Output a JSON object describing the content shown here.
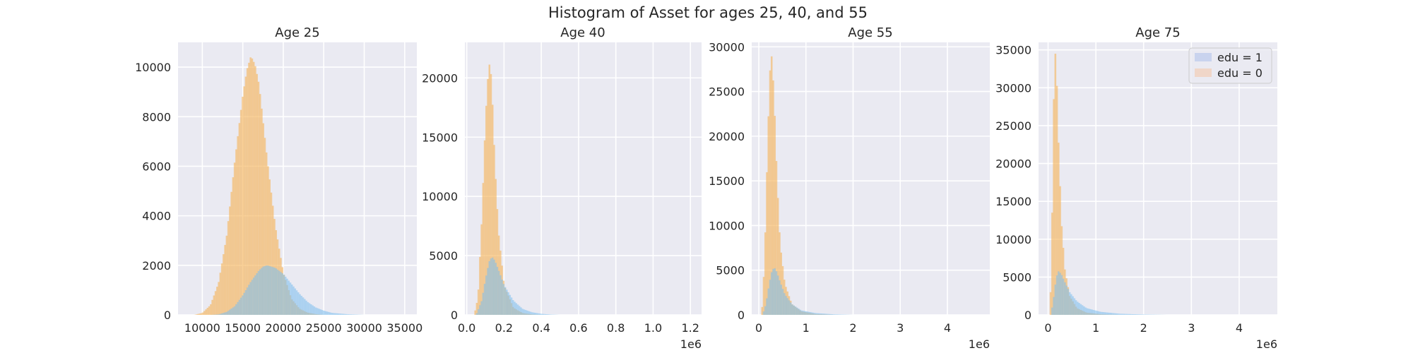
{
  "figure": {
    "title": "Histogram of Asset for ages 25, 40, and 55"
  },
  "colors": {
    "edu1": "#7fbfee",
    "edu0": "#f5b45a",
    "background": "#EAEAF2",
    "grid": "#ffffff"
  },
  "legend": {
    "location": "upper right of last panel",
    "entries": [
      {
        "label": "edu = 1",
        "swatch": "#c9d3ee"
      },
      {
        "label": "edu = 0",
        "swatch": "#f0d6c8"
      }
    ]
  },
  "chart_data": [
    {
      "type": "histogram",
      "title": "Age 25",
      "xlim": [
        7000,
        36500
      ],
      "ylim": [
        0,
        11000
      ],
      "xticks": [
        10000,
        15000,
        20000,
        25000,
        30000,
        35000
      ],
      "xtick_labels": [
        "10000",
        "15000",
        "20000",
        "25000",
        "30000",
        "35000"
      ],
      "yticks": [
        0,
        2000,
        4000,
        6000,
        8000,
        10000
      ],
      "ytick_labels": [
        "0",
        "2000",
        "4000",
        "6000",
        "8000",
        "10000"
      ],
      "offset_label": "",
      "series": [
        {
          "name": "edu = 0",
          "x": [
            9000,
            10000,
            11000,
            12000,
            13000,
            14000,
            15000,
            15500,
            16000,
            16500,
            17000,
            18000,
            19000,
            20000,
            21000,
            22000,
            23000,
            24000,
            25000
          ],
          "y": [
            0,
            80,
            400,
            1300,
            3200,
            6200,
            8900,
            9900,
            10450,
            10100,
            9300,
            6300,
            3600,
            1700,
            650,
            250,
            90,
            30,
            0
          ]
        },
        {
          "name": "edu = 1",
          "x": [
            11000,
            12000,
            13000,
            14000,
            15000,
            16000,
            17000,
            17500,
            18000,
            19000,
            20000,
            21000,
            22000,
            23000,
            24000,
            25000,
            26000,
            28000,
            30000
          ],
          "y": [
            0,
            20,
            120,
            350,
            800,
            1350,
            1800,
            1950,
            2000,
            1900,
            1650,
            1250,
            850,
            520,
            300,
            170,
            80,
            25,
            0
          ]
        }
      ]
    },
    {
      "type": "histogram",
      "title": "Age 40",
      "xlim": [
        -10000,
        1260000
      ],
      "ylim": [
        0,
        23000
      ],
      "xticks": [
        0,
        200000,
        400000,
        600000,
        800000,
        1000000,
        1200000
      ],
      "xtick_labels": [
        "0.0",
        "0.2",
        "0.4",
        "0.6",
        "0.8",
        "1.0",
        "1.2"
      ],
      "yticks": [
        0,
        5000,
        10000,
        15000,
        20000
      ],
      "ytick_labels": [
        "0",
        "5000",
        "10000",
        "15000",
        "20000"
      ],
      "offset_label": "1e6",
      "series": [
        {
          "name": "edu = 0",
          "x": [
            40000,
            60000,
            80000,
            100000,
            115000,
            125000,
            135000,
            150000,
            170000,
            200000,
            250000,
            300000,
            350000,
            400000
          ],
          "y": [
            0,
            1500,
            8000,
            16500,
            20500,
            21500,
            19000,
            13000,
            7000,
            2500,
            600,
            150,
            40,
            0
          ]
        },
        {
          "name": "edu = 1",
          "x": [
            50000,
            80000,
            100000,
            120000,
            135000,
            150000,
            170000,
            200000,
            250000,
            300000,
            350000,
            400000,
            450000,
            500000
          ],
          "y": [
            0,
            1200,
            3000,
            4500,
            4900,
            4600,
            3800,
            2500,
            1200,
            500,
            220,
            90,
            30,
            0
          ]
        }
      ]
    },
    {
      "type": "histogram",
      "title": "Age 55",
      "xlim": [
        -150000,
        4900000
      ],
      "ylim": [
        0,
        30500
      ],
      "xticks": [
        0,
        1000000,
        2000000,
        3000000,
        4000000
      ],
      "xtick_labels": [
        "0",
        "1",
        "2",
        "3",
        "4"
      ],
      "yticks": [
        0,
        5000,
        10000,
        15000,
        20000,
        25000,
        30000
      ],
      "ytick_labels": [
        "0",
        "5000",
        "10000",
        "15000",
        "20000",
        "25000",
        "30000"
      ],
      "offset_label": "1e6",
      "series": [
        {
          "name": "edu = 0",
          "x": [
            60000,
            120000,
            180000,
            230000,
            270000,
            320000,
            380000,
            450000,
            550000,
            700000,
            900000,
            1200000,
            1600000
          ],
          "y": [
            0,
            6000,
            18000,
            27000,
            29000,
            25000,
            16000,
            8000,
            3500,
            1200,
            400,
            100,
            0
          ]
        },
        {
          "name": "edu = 1",
          "x": [
            80000,
            150000,
            220000,
            280000,
            330000,
            380000,
            450000,
            550000,
            700000,
            900000,
            1200000,
            1600000,
            2000000
          ],
          "y": [
            0,
            1200,
            3500,
            5000,
            5300,
            4800,
            3700,
            2300,
            1200,
            500,
            200,
            60,
            0
          ]
        }
      ]
    },
    {
      "type": "histogram",
      "title": "Age 75",
      "xlim": [
        -200000,
        4800000
      ],
      "ylim": [
        0,
        36000
      ],
      "xticks": [
        0,
        1000000,
        2000000,
        3000000,
        4000000
      ],
      "xtick_labels": [
        "0",
        "1",
        "2",
        "3",
        "4"
      ],
      "yticks": [
        0,
        5000,
        10000,
        15000,
        20000,
        25000,
        30000,
        35000
      ],
      "ytick_labels": [
        "0",
        "5000",
        "10000",
        "15000",
        "20000",
        "25000",
        "30000",
        "35000"
      ],
      "offset_label": "1e6",
      "series": [
        {
          "name": "edu = 0",
          "x": [
            40000,
            80000,
            120000,
            150000,
            180000,
            220000,
            280000,
            350000,
            450000,
            600000,
            800000,
            1100000,
            1500000
          ],
          "y": [
            0,
            12000,
            30000,
            34500,
            31000,
            22000,
            12000,
            6000,
            2500,
            900,
            300,
            80,
            0
          ]
        },
        {
          "name": "edu = 1",
          "x": [
            60000,
            120000,
            170000,
            220000,
            280000,
            350000,
            450000,
            600000,
            800000,
            1100000,
            1500000,
            2000000,
            2500000
          ],
          "y": [
            0,
            2500,
            5000,
            5800,
            5300,
            4300,
            3000,
            1800,
            900,
            400,
            150,
            50,
            0
          ]
        }
      ]
    }
  ]
}
